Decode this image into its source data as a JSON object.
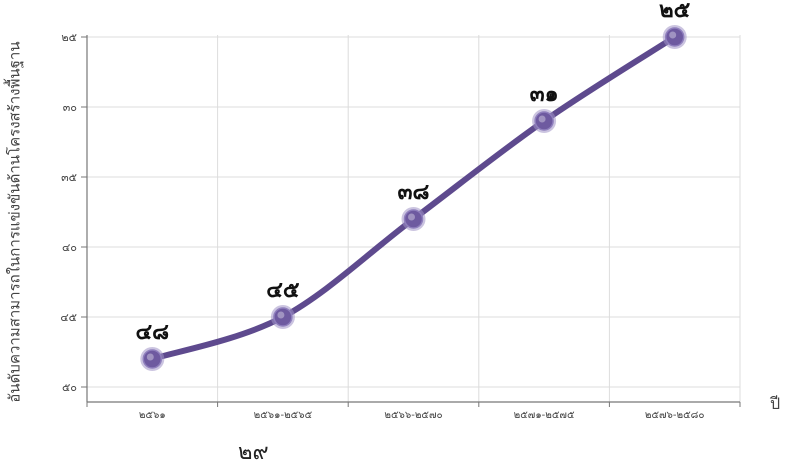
{
  "chart_data": {
    "type": "line",
    "categories": [
      "๒๕๖๑",
      "๒๕๖๑-๒๕๖๕",
      "๒๕๖๖-๒๕๗๐",
      "๒๕๗๑-๒๕๗๕",
      "๒๕๗๖-๒๕๘๐"
    ],
    "series": [
      {
        "values": [
          48,
          45,
          38,
          31,
          25
        ],
        "labels": [
          "๔๘",
          "๔๕",
          "๓๘",
          "๓๑",
          "๒๕"
        ]
      }
    ],
    "ylabel": "อันดับความสามารถในการแข่งขันด้านโครงสร้างพื้นฐาน",
    "xlabel": "ปี",
    "ylim": [
      50,
      25
    ],
    "y_reversed": true,
    "yticks": [
      25,
      30,
      35,
      40,
      45,
      50
    ],
    "ytick_labels": [
      "๒๕",
      "๓๐",
      "๓๕",
      "๔๐",
      "๔๕",
      "๕๐"
    ],
    "grid": true,
    "line_color": "#5e4a8e",
    "marker_color": "#6e5aa0"
  },
  "page_number": "๒๙"
}
